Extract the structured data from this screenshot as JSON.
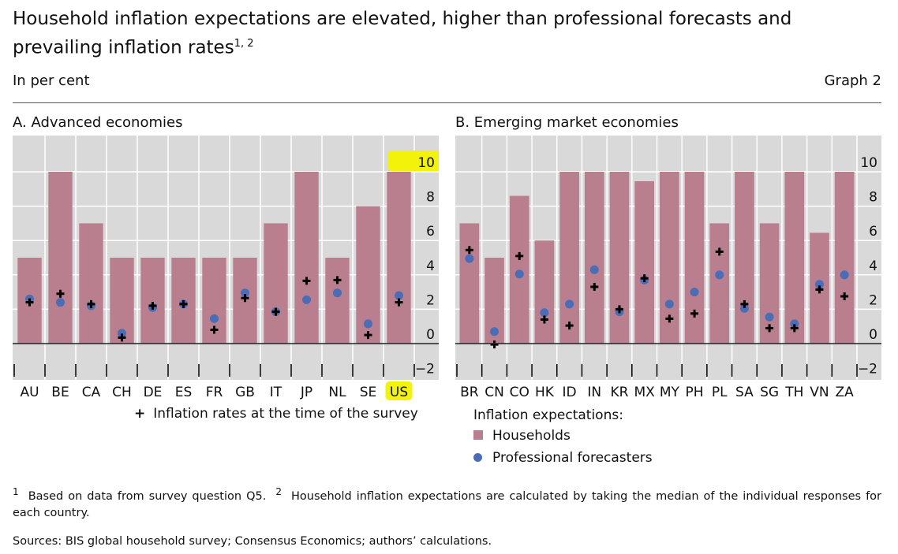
{
  "title": "Household inflation expectations are elevated, higher than professional forecasts and prevailing inflation rates",
  "title_sup": "1, 2",
  "unit": "In per cent",
  "graph_label": "Graph 2",
  "colors": {
    "households": "#b97f8e",
    "professional": "#4a6db5",
    "panel_bg": "#d9d9d9",
    "highlight": "#f2f20a"
  },
  "legend": {
    "inflation_rates": "Inflation rates at the time of the survey",
    "expectations_heading": "Inflation expectations:",
    "households": "Households",
    "professional": "Professional forecasters"
  },
  "footnotes": {
    "n1_mark": "1",
    "n1": "Based on data from survey question Q5.",
    "n2_mark": "2",
    "n2": "Household inflation expectations are calculated by taking the median of the individual responses for each country.",
    "sources": "Sources: BIS global household survey; Consensus Economics; authors’ calculations."
  },
  "chart_data": [
    {
      "type": "bar",
      "title": "A. Advanced economies",
      "ylim": [
        -2.5,
        11.8
      ],
      "yticks": [
        10,
        8,
        6,
        4,
        2,
        0,
        -2
      ],
      "ytick_labels": [
        "10",
        "8",
        "6",
        "4",
        "2",
        "0",
        "−2"
      ],
      "grid": true,
      "categories": [
        "AU",
        "BE",
        "CA",
        "CH",
        "DE",
        "ES",
        "FR",
        "GB",
        "IT",
        "JP",
        "NL",
        "SE",
        "US"
      ],
      "highlighted": [
        "US",
        "10"
      ],
      "series": [
        {
          "name": "Households",
          "type": "bar",
          "values": [
            5,
            10,
            7,
            5,
            5,
            5,
            5,
            5,
            7,
            10,
            5,
            8,
            10
          ]
        },
        {
          "name": "Professional forecasters",
          "type": "dot",
          "values": [
            2.6,
            2.4,
            2.2,
            0.6,
            2.1,
            2.3,
            1.45,
            2.95,
            1.85,
            2.55,
            2.95,
            1.15,
            2.8
          ]
        },
        {
          "name": "Inflation rates at the time of the survey",
          "type": "cross",
          "values": [
            2.4,
            2.9,
            2.3,
            0.35,
            2.2,
            2.3,
            0.8,
            2.65,
            1.85,
            3.65,
            3.7,
            0.5,
            2.4
          ]
        }
      ]
    },
    {
      "type": "bar",
      "title": "B. Emerging market economies",
      "ylim": [
        -2.5,
        11.8
      ],
      "yticks": [
        10,
        8,
        6,
        4,
        2,
        0,
        -2
      ],
      "ytick_labels": [
        "10",
        "8",
        "6",
        "4",
        "2",
        "0",
        "−2"
      ],
      "grid": true,
      "categories": [
        "BR",
        "CN",
        "CO",
        "HK",
        "ID",
        "IN",
        "KR",
        "MX",
        "MY",
        "PH",
        "PL",
        "SA",
        "SG",
        "TH",
        "VN",
        "ZA"
      ],
      "highlighted": [],
      "series": [
        {
          "name": "Households",
          "type": "bar",
          "values": [
            7,
            5,
            8.6,
            6,
            10,
            10,
            10,
            9.45,
            10,
            10,
            7,
            10,
            7,
            10,
            6.45,
            10
          ]
        },
        {
          "name": "Professional forecasters",
          "type": "dot",
          "values": [
            4.95,
            0.7,
            4.05,
            1.8,
            2.3,
            4.3,
            1.85,
            3.7,
            2.3,
            3.0,
            4.0,
            2.05,
            1.55,
            1.15,
            3.45,
            4.0
          ]
        },
        {
          "name": "Inflation rates at the time of the survey",
          "type": "cross",
          "values": [
            5.45,
            -0.05,
            5.1,
            1.4,
            1.05,
            3.3,
            2.0,
            3.8,
            1.45,
            1.75,
            5.35,
            2.3,
            0.9,
            0.9,
            3.15,
            2.75
          ]
        }
      ]
    }
  ]
}
